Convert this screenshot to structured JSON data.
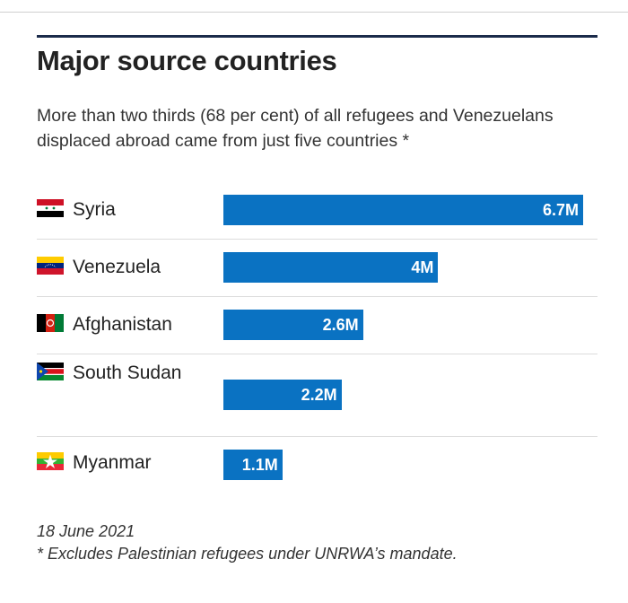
{
  "title": "Major source countries",
  "subtitle": "More than two thirds (68 per cent) of all refugees and Venezuelans displaced abroad came from just five countries *",
  "date": "18 June 2021",
  "footnote": "* Excludes Palestinian refugees under UNRWA’s mandate.",
  "chart_data": {
    "type": "bar",
    "orientation": "horizontal",
    "categories": [
      "Syria",
      "Venezuela",
      "Afghanistan",
      "South Sudan",
      "Myanmar"
    ],
    "values": [
      6.7,
      4.0,
      2.6,
      2.2,
      1.1
    ],
    "value_labels": [
      "6.7M",
      "4M",
      "2.6M",
      "2.2M",
      "1.1M"
    ],
    "bar_color": "#0a72c2",
    "xlim": [
      0,
      6.7
    ],
    "grid": false
  }
}
